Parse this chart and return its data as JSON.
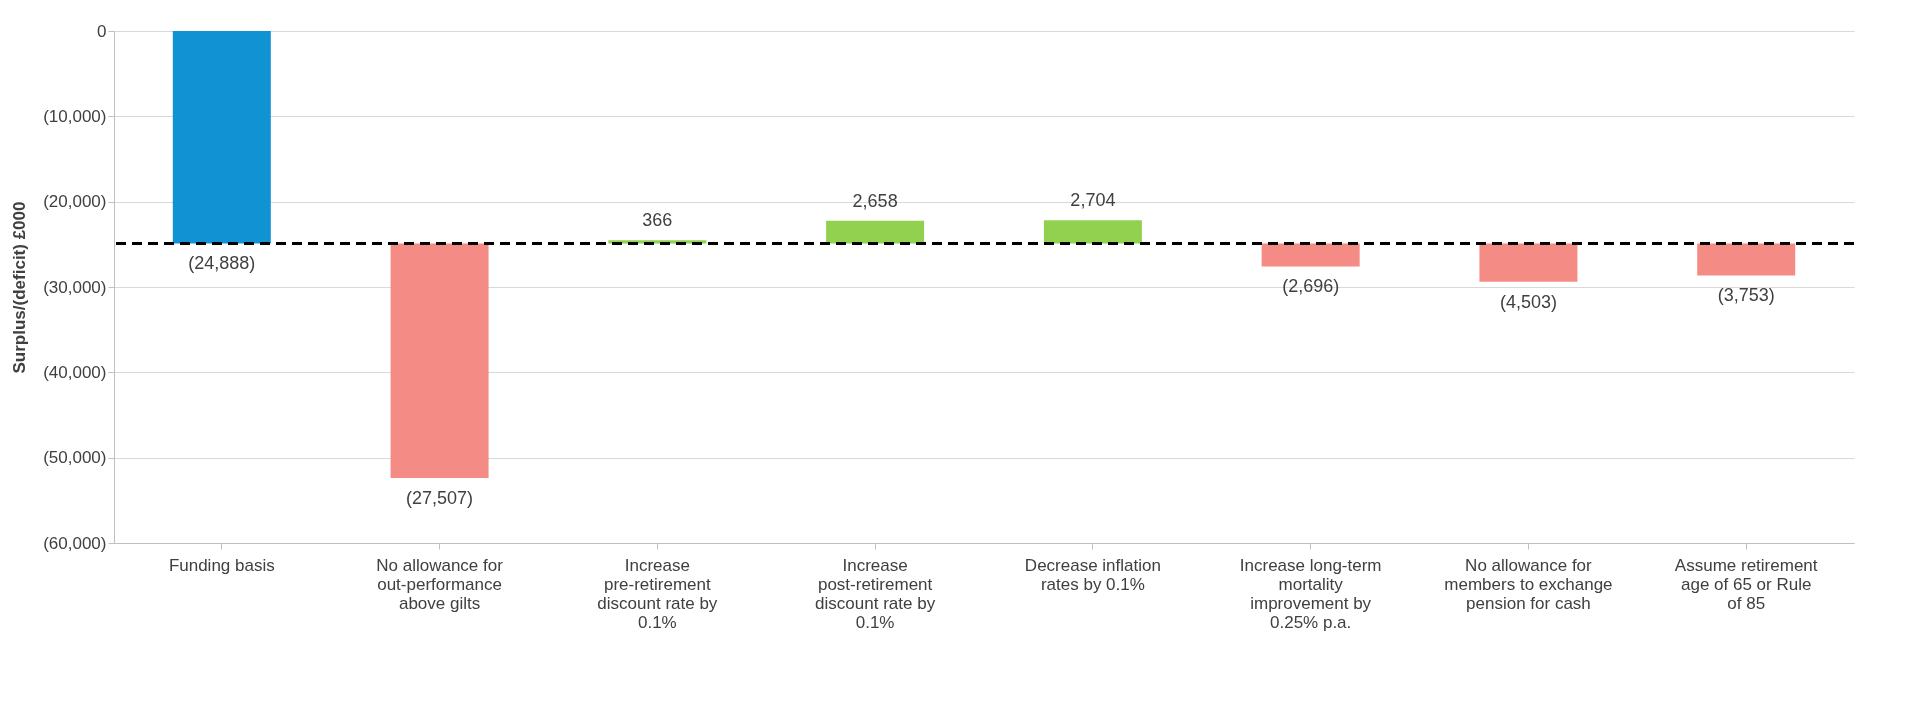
{
  "chart_data": {
    "type": "bar",
    "ylabel": "Surplus/(deficit) £000",
    "categories": [
      "Funding basis",
      "No allowance for out-performance above gilts",
      "Increase pre-retirement discount rate by 0.1%",
      "Increase post-retirement discount rate by 0.1%",
      "Decrease inflation rates by 0.1%",
      "Increase long-term mortality improvement by 0.25% p.a.",
      "No allowance for members to exchange pension for cash",
      "Assume retirement age of 65 or Rule of 85"
    ],
    "values": [
      -24888,
      -27507,
      366,
      2658,
      2704,
      -2696,
      -4503,
      -3753
    ],
    "base": [
      0,
      -24888,
      -24888,
      -24888,
      -24888,
      -24888,
      -24888,
      -24888
    ],
    "colors": [
      "#1192d3",
      "#f48b84",
      "#92d050",
      "#92d050",
      "#92d050",
      "#f48b84",
      "#f48b84",
      "#f48b84"
    ],
    "value_labels": [
      "(24,888)",
      "(27,507)",
      "366",
      "2,658",
      "2,704",
      "(2,696)",
      "(4,503)",
      "(3,753)"
    ],
    "ylim": [
      -60000,
      0
    ],
    "yticks": [
      {
        "value": -60000,
        "label": "(60,000)"
      },
      {
        "value": -50000,
        "label": "(50,000)"
      },
      {
        "value": -40000,
        "label": "(40,000)"
      },
      {
        "value": -30000,
        "label": "(30,000)"
      },
      {
        "value": -20000,
        "label": "(20,000)"
      },
      {
        "value": -10000,
        "label": "(10,000)"
      },
      0
    ],
    "ref_lines": [
      {
        "axis": "y",
        "value": -24888,
        "color": "#000000",
        "line_style": "dashed"
      }
    ],
    "grid": "y"
  }
}
